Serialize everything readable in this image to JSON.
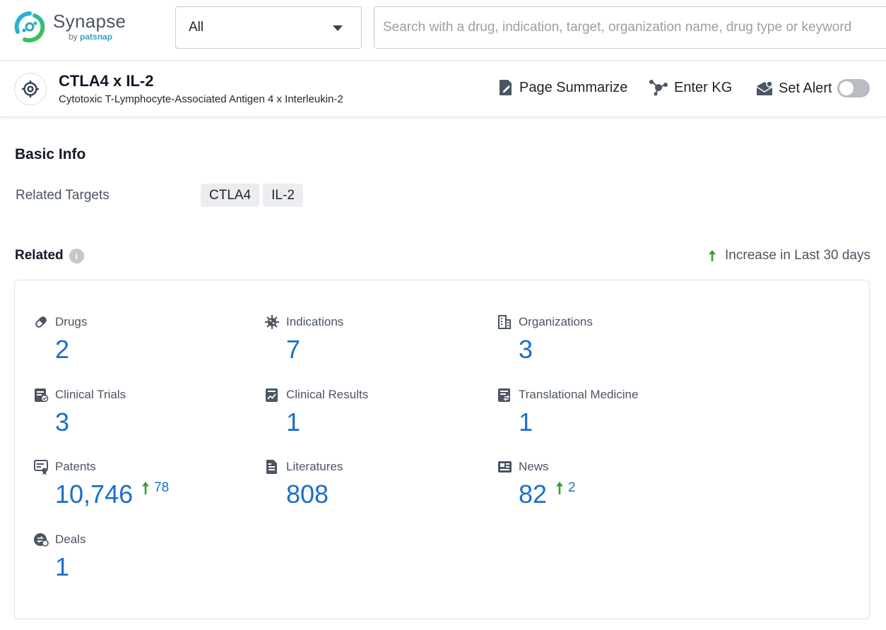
{
  "header": {
    "brand_name": "Synapse",
    "brand_by": "by",
    "brand_company": "patsnap",
    "select_value": "All",
    "search_placeholder": "Search with a drug, indication, target, organization name, drug type or keyword"
  },
  "entity": {
    "title": "CTLA4 x IL-2",
    "subtitle": "Cytotoxic T-Lymphocyte-Associated Antigen 4 x Interleukin-2",
    "actions": {
      "summarize": "Page Summarize",
      "kg": "Enter KG",
      "alert": "Set Alert"
    },
    "alert_enabled": false
  },
  "basic_info": {
    "title": "Basic Info",
    "related_targets_label": "Related Targets",
    "targets": [
      "CTLA4",
      "IL-2"
    ]
  },
  "related": {
    "title": "Related",
    "info_icon": "i",
    "legend": "Increase in Last 30 days",
    "stats": [
      {
        "label": "Drugs",
        "value": "2",
        "icon": "pill-icon"
      },
      {
        "label": "Indications",
        "value": "7",
        "icon": "virus-icon"
      },
      {
        "label": "Organizations",
        "value": "3",
        "icon": "building-icon"
      },
      {
        "label": "Clinical Trials",
        "value": "3",
        "icon": "clipboard-icon"
      },
      {
        "label": "Clinical Results",
        "value": "1",
        "icon": "chart-report-icon"
      },
      {
        "label": "Translational Medicine",
        "value": "1",
        "icon": "document-exchange-icon"
      },
      {
        "label": "Patents",
        "value": "10,746",
        "increase": "78",
        "icon": "patent-icon"
      },
      {
        "label": "Literatures",
        "value": "808",
        "icon": "document-icon"
      },
      {
        "label": "News",
        "value": "82",
        "increase": "2",
        "icon": "newspaper-icon"
      },
      {
        "label": "Deals",
        "value": "1",
        "icon": "deal-icon"
      }
    ]
  },
  "colors": {
    "accent": "#1c6fc9",
    "increase": "#3a9e2c",
    "icon": "#4b5563"
  }
}
